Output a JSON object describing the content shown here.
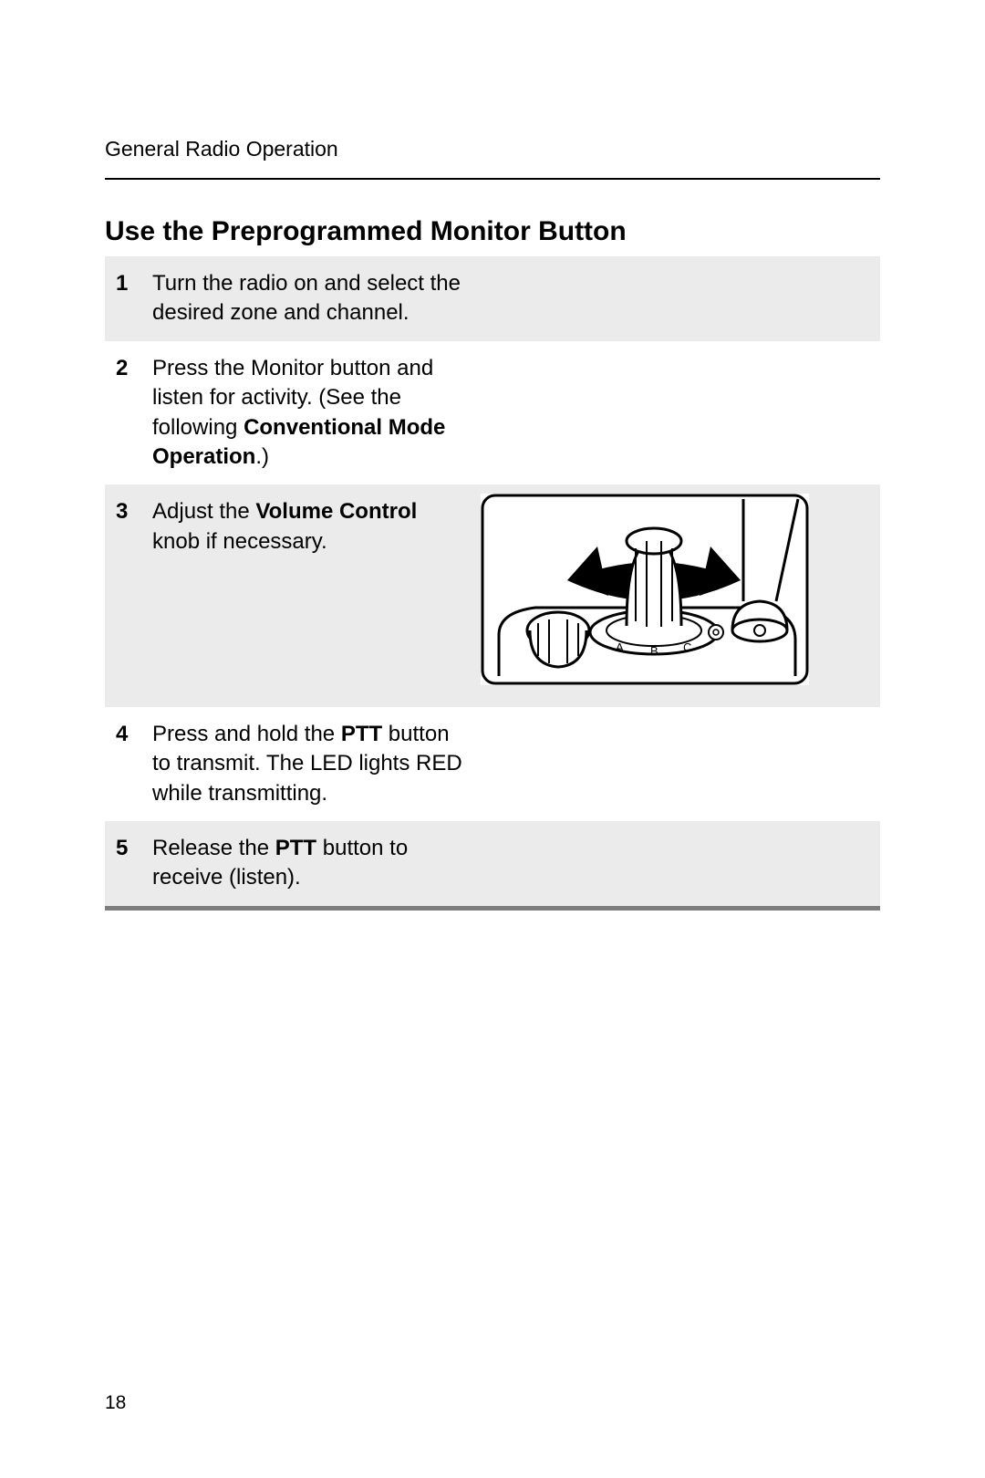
{
  "header": {
    "running_head": "General Radio Operation"
  },
  "section": {
    "title": "Use the Preprogrammed Monitor Button"
  },
  "steps": [
    {
      "num": "1",
      "shaded": true,
      "segments": [
        {
          "text": "Turn the radio on and select the desired zone and channel.",
          "bold": false
        }
      ]
    },
    {
      "num": "2",
      "shaded": false,
      "segments": [
        {
          "text": "Press the Monitor button and listen for activity. (See the following ",
          "bold": false
        },
        {
          "text": "Conventional Mode Operation",
          "bold": true
        },
        {
          "text": ".)",
          "bold": false
        }
      ]
    },
    {
      "num": "3",
      "shaded": true,
      "has_illustration": true,
      "segments": [
        {
          "text": "Adjust the ",
          "bold": false
        },
        {
          "text": "Volume Control",
          "bold": true
        },
        {
          "text": " knob if necessary.",
          "bold": false
        }
      ]
    },
    {
      "num": "4",
      "shaded": false,
      "segments": [
        {
          "text": "Press and hold the ",
          "bold": false
        },
        {
          "text": "PTT",
          "bold": true
        },
        {
          "text": " button to transmit. The LED lights RED while transmitting.",
          "bold": false
        }
      ]
    },
    {
      "num": "5",
      "shaded": true,
      "segments": [
        {
          "text": "Release the ",
          "bold": false
        },
        {
          "text": "PTT",
          "bold": true
        },
        {
          "text": " button to receive (listen).",
          "bold": false
        }
      ]
    }
  ],
  "illustration": {
    "desc": "volume-knob-rotate",
    "labels": [
      "A",
      "B",
      "C"
    ],
    "stroke": "#000000",
    "fill_arrow": "#000000",
    "bg": "#ffffff"
  },
  "footer": {
    "page_number": "18"
  },
  "colors": {
    "text": "#000000",
    "shade_bg": "#ebebeb",
    "bottom_rule": "#7d7d7d",
    "page_bg": "#ffffff"
  },
  "typography": {
    "body_fontsize_pt": 18,
    "title_fontsize_pt": 22,
    "running_head_fontsize_pt": 17,
    "pagenum_fontsize_pt": 16,
    "font_family": "Arial"
  }
}
